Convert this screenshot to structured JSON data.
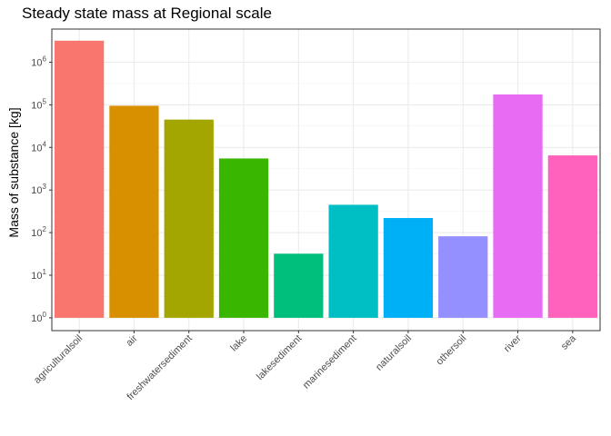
{
  "chart_data": {
    "type": "bar",
    "title": "Steady state mass at Regional scale",
    "xlabel": "",
    "ylabel": "Mass of substance [kg]",
    "y_scale": "log10",
    "ylim": [
      0.5,
      6000000
    ],
    "y_ticks": [
      {
        "base": "10",
        "exp": "0",
        "value": 1
      },
      {
        "base": "10",
        "exp": "1",
        "value": 10
      },
      {
        "base": "10",
        "exp": "2",
        "value": 100
      },
      {
        "base": "10",
        "exp": "3",
        "value": 1000
      },
      {
        "base": "10",
        "exp": "4",
        "value": 10000
      },
      {
        "base": "10",
        "exp": "5",
        "value": 100000
      },
      {
        "base": "10",
        "exp": "6",
        "value": 1000000
      }
    ],
    "categories": [
      "agriculturalsoil",
      "air",
      "freshwatersediment",
      "lake",
      "lakesediment",
      "marinesediment",
      "naturalsoil",
      "othersoil",
      "river",
      "sea"
    ],
    "values": [
      3200000,
      95000,
      45000,
      5500,
      32,
      450,
      220,
      82,
      175000,
      6500
    ],
    "colors": [
      "#F8766D",
      "#D89000",
      "#A3A500",
      "#39B600",
      "#00BF7D",
      "#00BFC4",
      "#00B0F6",
      "#9590FF",
      "#E76BF3",
      "#FF62BC"
    ],
    "grid": true,
    "legend": "none"
  }
}
